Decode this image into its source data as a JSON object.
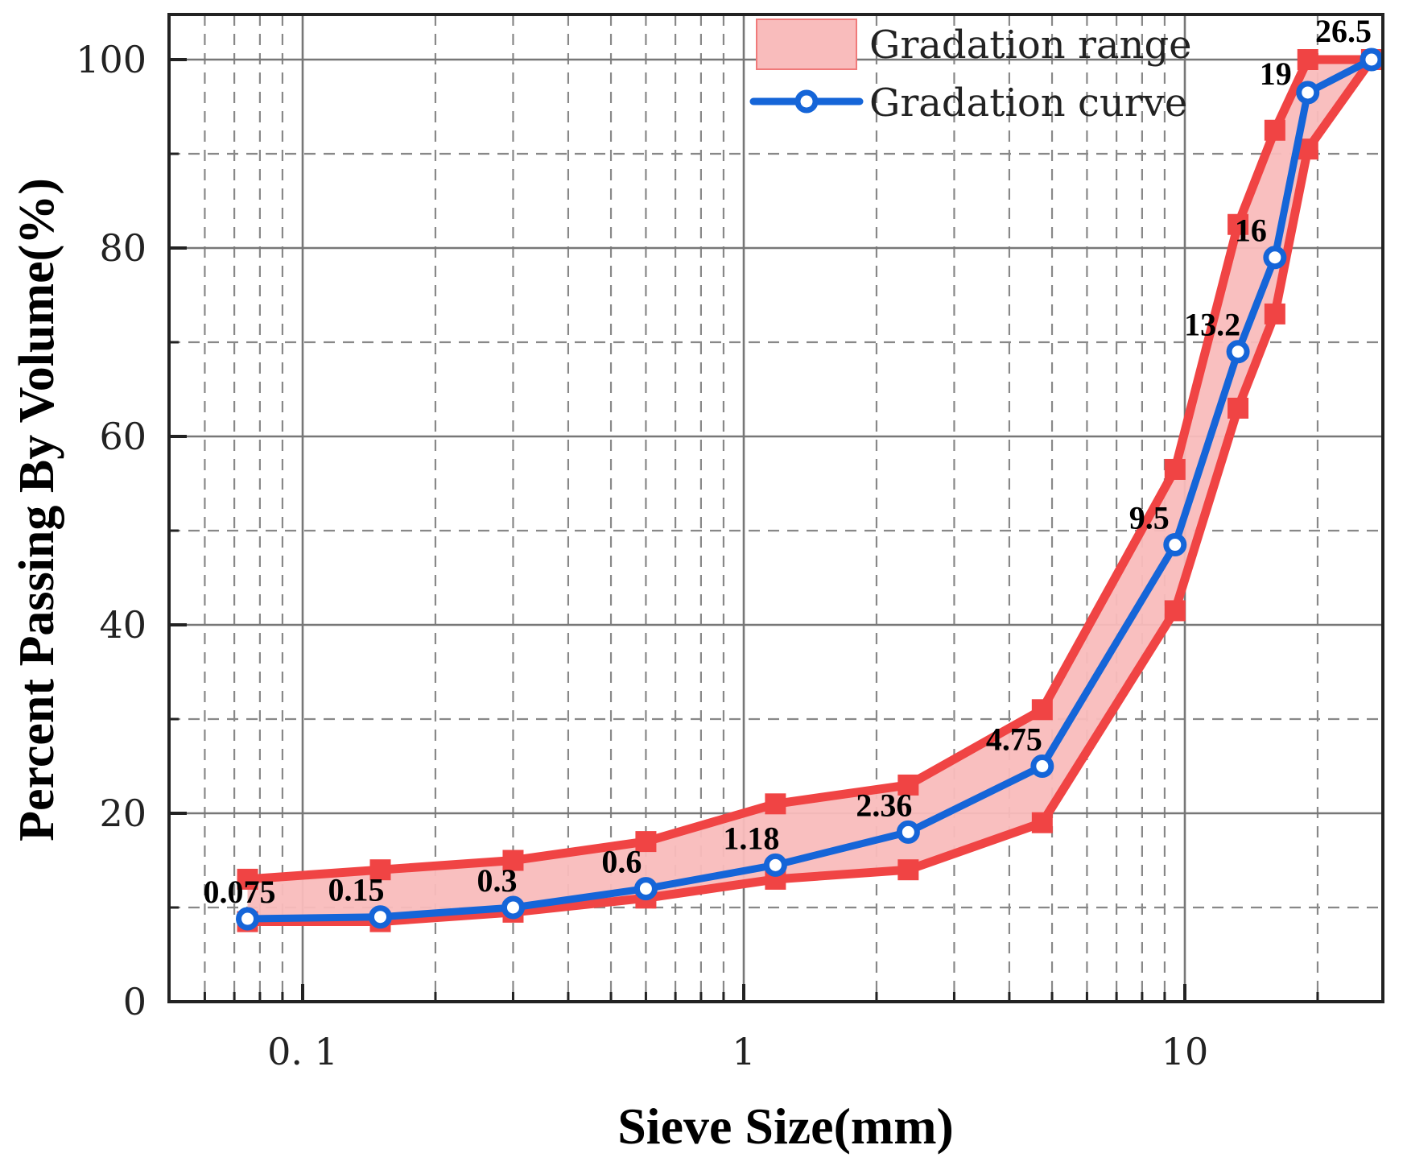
{
  "chart_data": {
    "type": "line",
    "title": "",
    "xlabel": "Sieve Size(mm)",
    "ylabel": "Percent Passing By Volume(%)",
    "xscale": "log",
    "xlim": [
      0.05,
      30
    ],
    "ylim": [
      0,
      100
    ],
    "x_ticks": [
      0.1,
      1,
      10
    ],
    "x_tick_labels": [
      "0. 1",
      "1",
      "10"
    ],
    "y_ticks": [
      0,
      20,
      40,
      60,
      80,
      100
    ],
    "y_tick_labels": [
      "0",
      "20",
      "40",
      "60",
      "80",
      "100"
    ],
    "grid": true,
    "legend_position": "top",
    "colors": {
      "range_fill": "#f9bcbc",
      "range_edge": "#f04444",
      "curve": "#1565d8",
      "grid_major": "#777777",
      "grid_minor": "#888888"
    },
    "x": [
      0.075,
      0.15,
      0.3,
      0.6,
      1.18,
      2.36,
      4.75,
      9.5,
      13.2,
      16,
      19,
      26.5
    ],
    "point_labels": [
      "0.075",
      "0.15",
      "0.3",
      "0.6",
      "1.18",
      "2.36",
      "4.75",
      "9.5",
      "13.2",
      "16",
      "19",
      "26.5"
    ],
    "series": [
      {
        "name": "Gradation range (upper)",
        "values": [
          13,
          14,
          15,
          17,
          21,
          23,
          31,
          56.5,
          82.5,
          92.5,
          100,
          100
        ]
      },
      {
        "name": "Gradation range (lower)",
        "values": [
          8.5,
          8.5,
          9.5,
          11,
          13,
          14,
          19,
          41.5,
          63,
          73,
          90.5,
          100
        ]
      },
      {
        "name": "Gradation curve",
        "values": [
          8.8,
          9,
          10,
          12,
          14.5,
          18,
          25,
          48.5,
          69,
          79,
          96.5,
          100
        ]
      }
    ],
    "legend": [
      "Gradation range",
      "Gradation curve"
    ]
  }
}
